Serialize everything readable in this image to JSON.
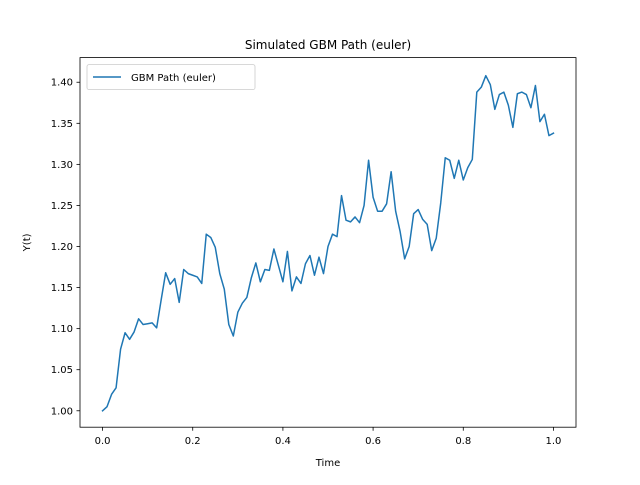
{
  "chart_data": {
    "type": "line",
    "title": "Simulated GBM Path (euler)",
    "xlabel": "Time",
    "ylabel": "Y(t)",
    "xlim": [
      -0.05,
      1.05
    ],
    "ylim": [
      0.98,
      1.43
    ],
    "xticks": [
      0.0,
      0.2,
      0.4,
      0.6,
      0.8,
      1.0
    ],
    "xtick_labels": [
      "0.0",
      "0.2",
      "0.4",
      "0.6",
      "0.8",
      "1.0"
    ],
    "yticks": [
      1.0,
      1.05,
      1.1,
      1.15,
      1.2,
      1.25,
      1.3,
      1.35,
      1.4
    ],
    "ytick_labels": [
      "1.00",
      "1.05",
      "1.10",
      "1.15",
      "1.20",
      "1.25",
      "1.30",
      "1.35",
      "1.40"
    ],
    "grid": false,
    "legend": {
      "placement": "top-left",
      "entries": [
        "GBM Path (euler)"
      ]
    },
    "series": [
      {
        "name": "GBM Path (euler)",
        "color": "#1f77b4",
        "x": [
          0.0,
          0.01,
          0.02,
          0.03,
          0.04,
          0.05,
          0.06,
          0.07,
          0.08,
          0.09,
          0.1,
          0.11,
          0.12,
          0.13,
          0.14,
          0.15,
          0.16,
          0.17,
          0.18,
          0.19,
          0.2,
          0.21,
          0.22,
          0.23,
          0.24,
          0.25,
          0.26,
          0.27,
          0.28,
          0.29,
          0.3,
          0.31,
          0.32,
          0.33,
          0.34,
          0.35,
          0.36,
          0.37,
          0.38,
          0.39,
          0.4,
          0.41,
          0.42,
          0.43,
          0.44,
          0.45,
          0.46,
          0.47,
          0.48,
          0.49,
          0.5,
          0.51,
          0.52,
          0.53,
          0.54,
          0.55,
          0.56,
          0.57,
          0.58,
          0.59,
          0.6,
          0.61,
          0.62,
          0.63,
          0.64,
          0.65,
          0.66,
          0.67,
          0.68,
          0.69,
          0.7,
          0.71,
          0.72,
          0.73,
          0.74,
          0.75,
          0.76,
          0.77,
          0.78,
          0.79,
          0.8,
          0.81,
          0.82,
          0.83,
          0.84,
          0.85,
          0.86,
          0.87,
          0.88,
          0.89,
          0.9,
          0.91,
          0.92,
          0.93,
          0.94,
          0.95,
          0.96,
          0.97,
          0.98,
          0.99,
          1.0
        ],
        "y": [
          1.0,
          1.005,
          1.02,
          1.028,
          1.075,
          1.095,
          1.087,
          1.096,
          1.112,
          1.105,
          1.106,
          1.107,
          1.101,
          1.135,
          1.168,
          1.154,
          1.161,
          1.132,
          1.172,
          1.167,
          1.165,
          1.163,
          1.155,
          1.215,
          1.211,
          1.199,
          1.167,
          1.148,
          1.105,
          1.091,
          1.12,
          1.131,
          1.138,
          1.162,
          1.18,
          1.157,
          1.172,
          1.171,
          1.197,
          1.177,
          1.157,
          1.194,
          1.146,
          1.163,
          1.155,
          1.179,
          1.189,
          1.165,
          1.187,
          1.167,
          1.2,
          1.215,
          1.212,
          1.262,
          1.232,
          1.23,
          1.236,
          1.229,
          1.25,
          1.305,
          1.26,
          1.243,
          1.243,
          1.252,
          1.291,
          1.243,
          1.218,
          1.185,
          1.2,
          1.24,
          1.245,
          1.233,
          1.227,
          1.195,
          1.21,
          1.253,
          1.308,
          1.305,
          1.283,
          1.305,
          1.281,
          1.296,
          1.306,
          1.388,
          1.394,
          1.408,
          1.397,
          1.367,
          1.385,
          1.388,
          1.372,
          1.345,
          1.386,
          1.388,
          1.385,
          1.369,
          1.396,
          1.352,
          1.361,
          1.335,
          1.338
        ]
      }
    ]
  }
}
